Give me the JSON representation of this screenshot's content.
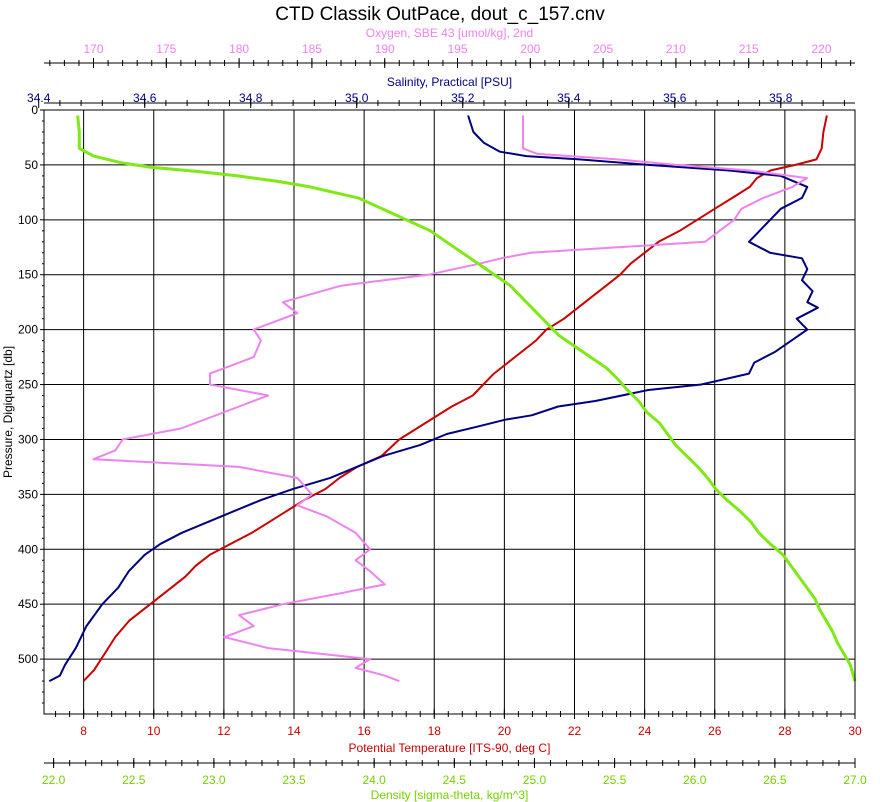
{
  "chart_data": {
    "type": "line",
    "title": "CTD Classik OutPace, dout_c_157.cnv",
    "y_axis": {
      "label": "Pressure, Digiquartz [db]",
      "range": [
        0,
        550
      ],
      "inverted": true,
      "ticks": [
        "0",
        "50",
        "100",
        "150",
        "200",
        "250",
        "300",
        "350",
        "400",
        "450",
        "500"
      ]
    },
    "x_axes": [
      {
        "id": "oxygen",
        "label": "Oxygen, SBE 43 [umol/kg], 2nd",
        "position": "top",
        "color": "#EE82EE",
        "range": [
          166.6,
          222.3
        ],
        "ticks": [
          "170",
          "175",
          "180",
          "185",
          "190",
          "195",
          "200",
          "205",
          "210",
          "215",
          "220"
        ]
      },
      {
        "id": "salinity",
        "label": "Salinity, Practical [PSU]",
        "position": "top",
        "color": "#000080",
        "range": [
          34.41,
          35.94
        ],
        "ticks": [
          "34.4",
          "34.6",
          "34.8",
          "35.0",
          "35.2",
          "35.4",
          "35.6",
          "35.8"
        ]
      },
      {
        "id": "temperature",
        "label": "Potential Temperature [ITS-90, deg C]",
        "position": "bottom",
        "color": "#CC0000",
        "range": [
          6.87,
          30.0
        ],
        "ticks": [
          "8",
          "10",
          "12",
          "14",
          "16",
          "18",
          "20",
          "22",
          "24",
          "26",
          "28",
          "30"
        ]
      },
      {
        "id": "density",
        "label": "Density [sigma-theta, kg/m^3]",
        "position": "bottom",
        "color": "#7FE817",
        "range": [
          21.94,
          27.0
        ],
        "ticks": [
          "22.0",
          "22.5",
          "23.0",
          "23.5",
          "24.0",
          "24.5",
          "25.0",
          "25.5",
          "26.0",
          "26.5",
          "27.0"
        ]
      }
    ],
    "grid": true,
    "series": [
      {
        "name": "Potential Temperature [ITS-90, deg C]",
        "axis": "temperature",
        "color": "#CC0000",
        "points": [
          [
            29.2,
            5
          ],
          [
            29.1,
            20
          ],
          [
            29.05,
            35
          ],
          [
            28.9,
            45
          ],
          [
            28.3,
            50
          ],
          [
            27.6,
            55
          ],
          [
            27.2,
            62
          ],
          [
            27.0,
            70
          ],
          [
            26.5,
            80
          ],
          [
            26.0,
            90
          ],
          [
            25.5,
            100
          ],
          [
            25.0,
            110
          ],
          [
            24.4,
            120
          ],
          [
            24.0,
            130
          ],
          [
            23.6,
            140
          ],
          [
            23.3,
            150
          ],
          [
            22.9,
            160
          ],
          [
            22.5,
            170
          ],
          [
            22.1,
            180
          ],
          [
            21.7,
            190
          ],
          [
            21.2,
            200
          ],
          [
            20.9,
            210
          ],
          [
            20.5,
            220
          ],
          [
            20.1,
            230
          ],
          [
            19.7,
            240
          ],
          [
            19.4,
            250
          ],
          [
            19.1,
            260
          ],
          [
            18.5,
            270
          ],
          [
            18.0,
            280
          ],
          [
            17.5,
            290
          ],
          [
            17.0,
            300
          ],
          [
            16.5,
            315
          ],
          [
            15.8,
            325
          ],
          [
            15.3,
            335
          ],
          [
            14.9,
            345
          ],
          [
            14.3,
            355
          ],
          [
            13.8,
            365
          ],
          [
            13.3,
            375
          ],
          [
            12.8,
            385
          ],
          [
            12.2,
            395
          ],
          [
            11.6,
            405
          ],
          [
            11.2,
            415
          ],
          [
            10.9,
            425
          ],
          [
            10.5,
            435
          ],
          [
            10.1,
            445
          ],
          [
            9.7,
            455
          ],
          [
            9.3,
            465
          ],
          [
            8.9,
            480
          ],
          [
            8.6,
            495
          ],
          [
            8.3,
            510
          ],
          [
            8.0,
            520
          ]
        ]
      },
      {
        "name": "Salinity, Practical [PSU]",
        "axis": "salinity",
        "color": "#000080",
        "points": [
          [
            35.21,
            5
          ],
          [
            35.22,
            20
          ],
          [
            35.24,
            30
          ],
          [
            35.27,
            38
          ],
          [
            35.32,
            42
          ],
          [
            35.42,
            45
          ],
          [
            35.55,
            50
          ],
          [
            35.7,
            55
          ],
          [
            35.8,
            60
          ],
          [
            35.85,
            70
          ],
          [
            35.84,
            80
          ],
          [
            35.8,
            90
          ],
          [
            35.78,
            100
          ],
          [
            35.76,
            110
          ],
          [
            35.74,
            120
          ],
          [
            35.78,
            130
          ],
          [
            35.84,
            135
          ],
          [
            35.85,
            145
          ],
          [
            35.84,
            155
          ],
          [
            35.86,
            165
          ],
          [
            35.85,
            175
          ],
          [
            35.87,
            180
          ],
          [
            35.83,
            190
          ],
          [
            35.85,
            200
          ],
          [
            35.82,
            210
          ],
          [
            35.79,
            220
          ],
          [
            35.75,
            230
          ],
          [
            35.74,
            240
          ],
          [
            35.65,
            250
          ],
          [
            35.55,
            255
          ],
          [
            35.45,
            265
          ],
          [
            35.38,
            270
          ],
          [
            35.33,
            278
          ],
          [
            35.28,
            282
          ],
          [
            35.23,
            288
          ],
          [
            35.17,
            295
          ],
          [
            35.12,
            305
          ],
          [
            35.05,
            315
          ],
          [
            35.0,
            325
          ],
          [
            34.95,
            335
          ],
          [
            34.88,
            345
          ],
          [
            34.82,
            355
          ],
          [
            34.77,
            365
          ],
          [
            34.72,
            375
          ],
          [
            34.67,
            385
          ],
          [
            34.63,
            395
          ],
          [
            34.6,
            405
          ],
          [
            34.57,
            420
          ],
          [
            34.55,
            435
          ],
          [
            34.52,
            450
          ],
          [
            34.49,
            470
          ],
          [
            34.47,
            490
          ],
          [
            34.45,
            505
          ],
          [
            34.44,
            515
          ],
          [
            34.42,
            520
          ]
        ]
      },
      {
        "name": "Oxygen, SBE 43 [umol/kg], 2nd",
        "axis": "oxygen",
        "color": "#EE82EE",
        "points": [
          [
            199.5,
            5
          ],
          [
            199.5,
            20
          ],
          [
            199.5,
            35
          ],
          [
            200.5,
            40
          ],
          [
            206,
            45
          ],
          [
            210,
            50
          ],
          [
            215,
            55
          ],
          [
            219,
            62
          ],
          [
            218,
            70
          ],
          [
            216,
            80
          ],
          [
            214.5,
            90
          ],
          [
            214,
            100
          ],
          [
            213,
            110
          ],
          [
            212,
            120
          ],
          [
            200,
            130
          ],
          [
            198,
            135
          ],
          [
            196.5,
            140
          ],
          [
            193,
            150
          ],
          [
            187,
            160
          ],
          [
            183,
            175
          ],
          [
            184,
            185
          ],
          [
            181,
            200
          ],
          [
            181.5,
            210
          ],
          [
            181,
            225
          ],
          [
            178,
            240
          ],
          [
            178,
            250
          ],
          [
            182,
            260
          ],
          [
            180,
            270
          ],
          [
            178,
            280
          ],
          [
            176,
            290
          ],
          [
            172,
            300
          ],
          [
            171.5,
            310
          ],
          [
            170,
            318
          ],
          [
            180,
            325
          ],
          [
            184,
            335
          ],
          [
            185,
            350
          ],
          [
            184,
            360
          ],
          [
            186,
            370
          ],
          [
            188,
            385
          ],
          [
            189,
            400
          ],
          [
            188,
            410
          ],
          [
            189,
            420
          ],
          [
            190,
            432
          ],
          [
            187,
            440
          ],
          [
            183,
            450
          ],
          [
            180,
            460
          ],
          [
            181,
            470
          ],
          [
            179,
            480
          ],
          [
            182,
            490
          ],
          [
            189,
            500
          ],
          [
            188,
            508
          ],
          [
            190,
            515
          ],
          [
            191,
            520
          ]
        ]
      },
      {
        "name": "Density [sigma-theta, kg/m^3]",
        "axis": "density",
        "color": "#7FE817",
        "points": [
          [
            22.15,
            5
          ],
          [
            22.16,
            20
          ],
          [
            22.16,
            35
          ],
          [
            22.25,
            42
          ],
          [
            22.42,
            48
          ],
          [
            22.6,
            52
          ],
          [
            22.9,
            56
          ],
          [
            23.15,
            60
          ],
          [
            23.4,
            65
          ],
          [
            23.6,
            70
          ],
          [
            23.75,
            75
          ],
          [
            23.9,
            80
          ],
          [
            24.05,
            90
          ],
          [
            24.2,
            100
          ],
          [
            24.35,
            110
          ],
          [
            24.45,
            120
          ],
          [
            24.55,
            130
          ],
          [
            24.65,
            140
          ],
          [
            24.75,
            150
          ],
          [
            24.85,
            160
          ],
          [
            24.95,
            175
          ],
          [
            25.05,
            190
          ],
          [
            25.15,
            205
          ],
          [
            25.25,
            215
          ],
          [
            25.35,
            225
          ],
          [
            25.45,
            235
          ],
          [
            25.52,
            245
          ],
          [
            25.58,
            255
          ],
          [
            25.65,
            265
          ],
          [
            25.7,
            275
          ],
          [
            25.78,
            285
          ],
          [
            25.83,
            295
          ],
          [
            25.88,
            305
          ],
          [
            25.95,
            315
          ],
          [
            26.02,
            325
          ],
          [
            26.08,
            335
          ],
          [
            26.13,
            345
          ],
          [
            26.2,
            355
          ],
          [
            26.28,
            365
          ],
          [
            26.35,
            375
          ],
          [
            26.4,
            385
          ],
          [
            26.47,
            395
          ],
          [
            26.55,
            405
          ],
          [
            26.6,
            415
          ],
          [
            26.65,
            425
          ],
          [
            26.7,
            435
          ],
          [
            26.75,
            445
          ],
          [
            26.78,
            455
          ],
          [
            26.82,
            465
          ],
          [
            26.86,
            475
          ],
          [
            26.89,
            485
          ],
          [
            26.93,
            495
          ],
          [
            26.97,
            505
          ],
          [
            26.99,
            515
          ],
          [
            27.0,
            520
          ]
        ]
      }
    ]
  }
}
